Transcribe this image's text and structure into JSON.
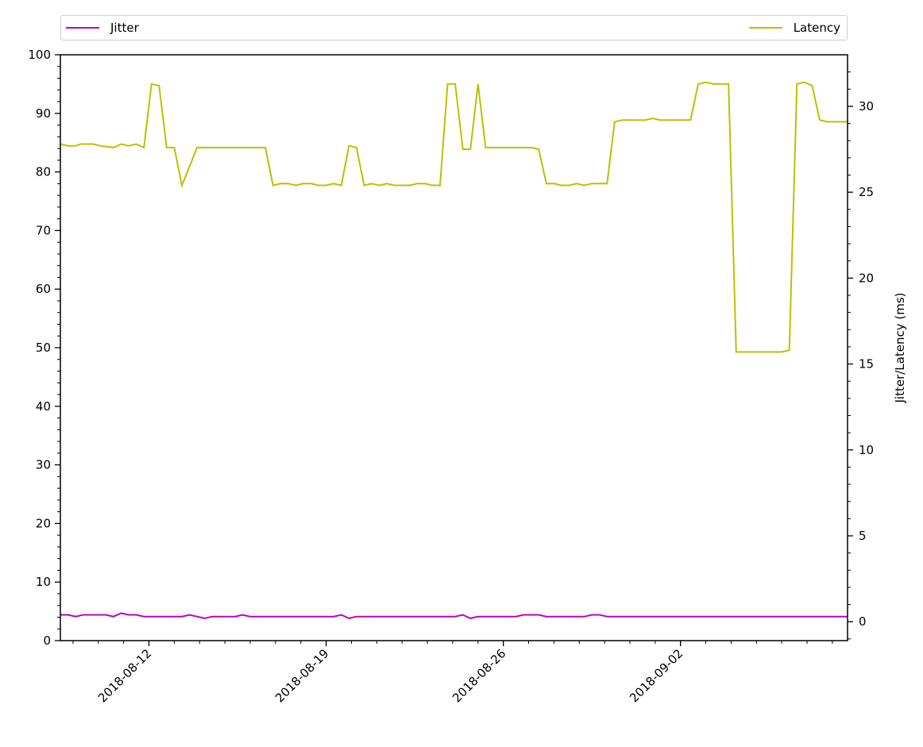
{
  "chart_data": {
    "type": "line",
    "title": "",
    "xlabel": "",
    "ylabel_left": "",
    "ylabel_right": "Jitter/Latency (ms)",
    "y_left_lim": [
      0,
      100
    ],
    "y_left_ticks": [
      0,
      10,
      20,
      30,
      40,
      50,
      60,
      70,
      80,
      90,
      100
    ],
    "y_right_lim": [
      -1.1,
      33.0
    ],
    "y_right_ticks": [
      0,
      5,
      10,
      15,
      20,
      25,
      30
    ],
    "x_start": "2018-08-08T12:00",
    "x_end": "2018-09-09T00:00",
    "x_tick_labels": [
      "2018-08-12",
      "2018-08-19",
      "2018-08-26",
      "2018-09-02"
    ],
    "x_tick_days": [
      3.5,
      10.5,
      17.5,
      24.5
    ],
    "x_day_span": 31.1,
    "legend": [
      {
        "name": "Jitter",
        "color": "#bf00bf",
        "position": "top-left"
      },
      {
        "name": "Latency",
        "color": "#bfbf00",
        "position": "top-right"
      }
    ],
    "series": [
      {
        "name": "Latency",
        "color": "#bfbf00",
        "axis": "right",
        "x_days": [
          0,
          0.3,
          0.6,
          0.8,
          1.1,
          1.3,
          1.6,
          2.1,
          2.4,
          2.7,
          3.0,
          3.3,
          3.6,
          3.9,
          4.2,
          4.5,
          4.8,
          5.4,
          6.0,
          6.3,
          6.6,
          6.9,
          7.2,
          7.5,
          7.8,
          8.1,
          8.4,
          8.7,
          9.0,
          9.3,
          9.6,
          9.9,
          10.2,
          10.5,
          10.8,
          11.1,
          11.4,
          11.7,
          12.0,
          12.3,
          12.6,
          12.9,
          13.2,
          13.5,
          13.8,
          14.1,
          14.4,
          14.7,
          15.0,
          15.3,
          15.6,
          15.9,
          16.2,
          16.5,
          16.8,
          17.1,
          17.4,
          17.7,
          18.0,
          18.3,
          18.6,
          18.9,
          19.2,
          19.5,
          19.8,
          20.1,
          20.4,
          20.7,
          21.0,
          21.3,
          21.6,
          21.9,
          22.2,
          22.5,
          22.8,
          23.1,
          23.4,
          23.7,
          24.0,
          24.3,
          24.6,
          24.9,
          25.2,
          25.5,
          25.8,
          26.1,
          26.4,
          26.7,
          27.0,
          27.3,
          27.6,
          27.9,
          28.2,
          28.5,
          28.8,
          29.1,
          29.4,
          29.7,
          30.0,
          30.3,
          30.6,
          30.9,
          31.1
        ],
        "values": [
          27.8,
          27.7,
          27.7,
          27.8,
          27.8,
          27.8,
          27.7,
          27.6,
          27.8,
          27.7,
          27.8,
          27.6,
          31.3,
          31.2,
          27.6,
          27.6,
          25.4,
          27.6,
          27.6,
          27.6,
          27.6,
          27.6,
          27.6,
          27.6,
          27.6,
          27.6,
          25.4,
          25.5,
          25.5,
          25.4,
          25.5,
          25.5,
          25.4,
          25.4,
          25.5,
          25.4,
          27.7,
          27.6,
          25.4,
          25.5,
          25.4,
          25.5,
          25.4,
          25.4,
          25.4,
          25.5,
          25.5,
          25.4,
          25.4,
          31.3,
          31.3,
          27.5,
          27.5,
          31.3,
          27.6,
          27.6,
          27.6,
          27.6,
          27.6,
          27.6,
          27.6,
          27.5,
          25.5,
          25.5,
          25.4,
          25.4,
          25.5,
          25.4,
          25.5,
          25.5,
          25.5,
          29.1,
          29.2,
          29.2,
          29.2,
          29.2,
          29.3,
          29.2,
          29.2,
          29.2,
          29.2,
          29.2,
          31.3,
          31.4,
          31.3,
          31.3,
          31.3,
          15.7,
          15.7,
          15.7,
          15.7,
          15.7,
          15.7,
          15.7,
          15.8,
          31.3,
          31.4,
          31.2,
          29.2,
          29.1,
          29.1,
          29.1,
          29.1
        ]
      },
      {
        "name": "Jitter",
        "color": "#bf00bf",
        "axis": "right",
        "x_days": [
          0,
          0.3,
          0.6,
          0.9,
          1.2,
          1.5,
          1.8,
          2.1,
          2.4,
          2.7,
          3.0,
          3.3,
          3.6,
          3.9,
          4.2,
          4.5,
          4.8,
          5.1,
          5.4,
          5.7,
          6.0,
          6.3,
          6.6,
          6.9,
          7.2,
          7.5,
          7.8,
          8.1,
          8.4,
          8.7,
          9.0,
          9.3,
          9.6,
          9.9,
          10.2,
          10.5,
          10.8,
          11.1,
          11.4,
          11.7,
          12.0,
          12.3,
          12.6,
          12.9,
          13.2,
          13.5,
          13.8,
          14.1,
          14.4,
          14.7,
          15.0,
          15.3,
          15.6,
          15.9,
          16.2,
          16.5,
          16.8,
          17.1,
          17.4,
          17.7,
          18.0,
          18.3,
          18.6,
          18.9,
          19.2,
          19.5,
          19.8,
          20.1,
          20.4,
          20.7,
          21.0,
          21.3,
          21.6,
          21.9,
          22.2,
          22.5,
          22.8,
          23.1,
          23.4,
          23.7,
          24.0,
          24.3,
          24.6,
          24.9,
          25.2,
          25.5,
          25.8,
          26.1,
          26.4,
          26.7,
          27.0,
          27.3,
          27.6,
          27.9,
          28.2,
          28.5,
          28.8,
          29.1,
          29.4,
          29.7,
          30.0,
          30.3,
          30.6,
          30.9,
          31.1
        ],
        "values": [
          0.4,
          0.4,
          0.3,
          0.4,
          0.4,
          0.4,
          0.4,
          0.3,
          0.5,
          0.4,
          0.4,
          0.3,
          0.3,
          0.3,
          0.3,
          0.3,
          0.3,
          0.4,
          0.3,
          0.2,
          0.3,
          0.3,
          0.3,
          0.3,
          0.4,
          0.3,
          0.3,
          0.3,
          0.3,
          0.3,
          0.3,
          0.3,
          0.3,
          0.3,
          0.3,
          0.3,
          0.3,
          0.4,
          0.2,
          0.3,
          0.3,
          0.3,
          0.3,
          0.3,
          0.3,
          0.3,
          0.3,
          0.3,
          0.3,
          0.3,
          0.3,
          0.3,
          0.3,
          0.4,
          0.2,
          0.3,
          0.3,
          0.3,
          0.3,
          0.3,
          0.3,
          0.4,
          0.4,
          0.4,
          0.3,
          0.3,
          0.3,
          0.3,
          0.3,
          0.3,
          0.4,
          0.4,
          0.3,
          0.3,
          0.3,
          0.3,
          0.3,
          0.3,
          0.3,
          0.3,
          0.3,
          0.3,
          0.3,
          0.3,
          0.3,
          0.3,
          0.3,
          0.3,
          0.3,
          0.3,
          0.3,
          0.3,
          0.3,
          0.3,
          0.3,
          0.3,
          0.3,
          0.3,
          0.3,
          0.3,
          0.3,
          0.3,
          0.3,
          0.3,
          0.3
        ]
      }
    ]
  }
}
